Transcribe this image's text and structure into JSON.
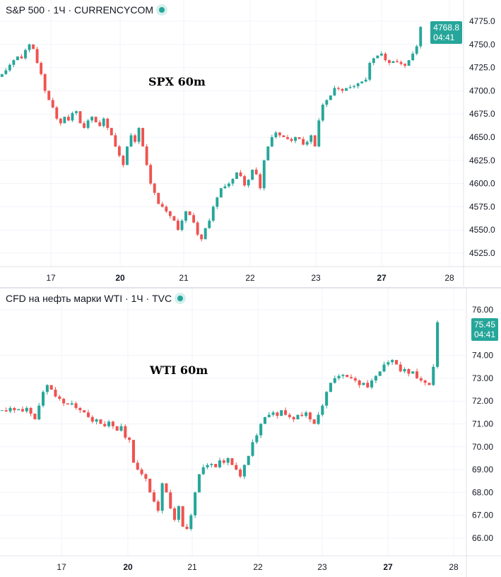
{
  "colors": {
    "up": "#26a69a",
    "down": "#ef5350"
  },
  "top": {
    "title": "S&P 500 · 1Ч · CURRENCYCOM",
    "label": "SPX 60m",
    "last_price": "4768.8",
    "countdown": "04:41",
    "y_ticks": [
      "4775.0",
      "4750.0",
      "4725.0",
      "4700.0",
      "4675.0",
      "4650.0",
      "4625.0",
      "4600.0",
      "4575.0",
      "4550.0",
      "4525.0"
    ],
    "x_ticks": [
      {
        "t": "17",
        "b": false
      },
      {
        "t": "20",
        "b": true
      },
      {
        "t": "21",
        "b": false
      },
      {
        "t": "22",
        "b": false
      },
      {
        "t": "23",
        "b": false
      },
      {
        "t": "27",
        "b": true
      },
      {
        "t": "28",
        "b": false
      }
    ]
  },
  "bottom": {
    "title": "CFD на нефть марки WTI · 1Ч · TVC",
    "label": "WTI 60m",
    "last_price": "75.45",
    "countdown": "04:41",
    "y_ticks": [
      "76.00",
      "74.00",
      "73.00",
      "72.00",
      "71.00",
      "70.00",
      "69.00",
      "68.00",
      "67.00",
      "66.00"
    ],
    "x_ticks": [
      {
        "t": "17",
        "b": false
      },
      {
        "t": "20",
        "b": true
      },
      {
        "t": "21",
        "b": false
      },
      {
        "t": "22",
        "b": false
      },
      {
        "t": "23",
        "b": false
      },
      {
        "t": "27",
        "b": true
      },
      {
        "t": "28",
        "b": false
      }
    ]
  },
  "chart_data": [
    {
      "type": "candlestick",
      "title": "S&P 500 · 1Ч · CURRENCYCOM",
      "ylim": [
        4510,
        4780
      ],
      "start": 4715,
      "closes": [
        4718,
        4722,
        4728,
        4733,
        4737,
        4735,
        4744,
        4750,
        4745,
        4730,
        4718,
        4700,
        4690,
        4682,
        4670,
        4665,
        4672,
        4668,
        4676,
        4678,
        4665,
        4660,
        4668,
        4672,
        4666,
        4662,
        4670,
        4660,
        4652,
        4640,
        4630,
        4620,
        4640,
        4652,
        4645,
        4660,
        4640,
        4620,
        4600,
        4590,
        4578,
        4575,
        4570,
        4565,
        4560,
        4550,
        4560,
        4570,
        4566,
        4558,
        4545,
        4540,
        4552,
        4560,
        4575,
        4585,
        4595,
        4597,
        4600,
        4605,
        4612,
        4608,
        4598,
        4604,
        4615,
        4610,
        4595,
        4625,
        4640,
        4650,
        4655,
        4652,
        4650,
        4648,
        4646,
        4650,
        4648,
        4642,
        4645,
        4652,
        4640,
        4668,
        4685,
        4690,
        4695,
        4703,
        4702,
        4700,
        4703,
        4704,
        4705,
        4708,
        4710,
        4712,
        4730,
        4735,
        4738,
        4740,
        4733,
        4730,
        4732,
        4731,
        4729,
        4727,
        4733,
        4740,
        4748,
        4768.8
      ]
    },
    {
      "type": "candlestick",
      "title": "CFD на нефть марки WTI · 1Ч · TVC",
      "ylim": [
        65.5,
        76.5
      ],
      "start": 71.6,
      "closes": [
        71.6,
        71.55,
        71.7,
        71.6,
        71.65,
        71.55,
        71.7,
        71.45,
        71.2,
        71.8,
        72.4,
        72.7,
        72.5,
        72.2,
        72.1,
        71.9,
        71.85,
        71.9,
        71.7,
        71.6,
        71.5,
        71.3,
        71.1,
        71.2,
        71.0,
        70.9,
        71.1,
        70.9,
        70.7,
        70.9,
        70.4,
        70.3,
        69.3,
        69.0,
        68.8,
        68.6,
        68.0,
        67.6,
        67.2,
        68.4,
        68.0,
        67.3,
        66.8,
        67.4,
        66.5,
        66.4,
        67.0,
        68.0,
        68.8,
        69.1,
        69.2,
        69.25,
        69.1,
        69.4,
        69.3,
        69.5,
        69.2,
        69.0,
        68.7,
        69.2,
        69.6,
        70.2,
        70.5,
        71.0,
        71.3,
        71.4,
        71.5,
        71.35,
        71.6,
        71.4,
        71.3,
        71.2,
        71.4,
        71.35,
        71.5,
        71.2,
        71.0,
        71.4,
        71.8,
        72.4,
        72.8,
        73.0,
        73.1,
        73.15,
        73.05,
        73.0,
        72.9,
        72.7,
        72.8,
        72.6,
        72.9,
        73.1,
        73.3,
        73.6,
        73.7,
        73.8,
        73.6,
        73.3,
        73.4,
        73.2,
        73.3,
        73.0,
        72.9,
        72.8,
        72.7,
        73.5,
        75.45
      ]
    }
  ]
}
